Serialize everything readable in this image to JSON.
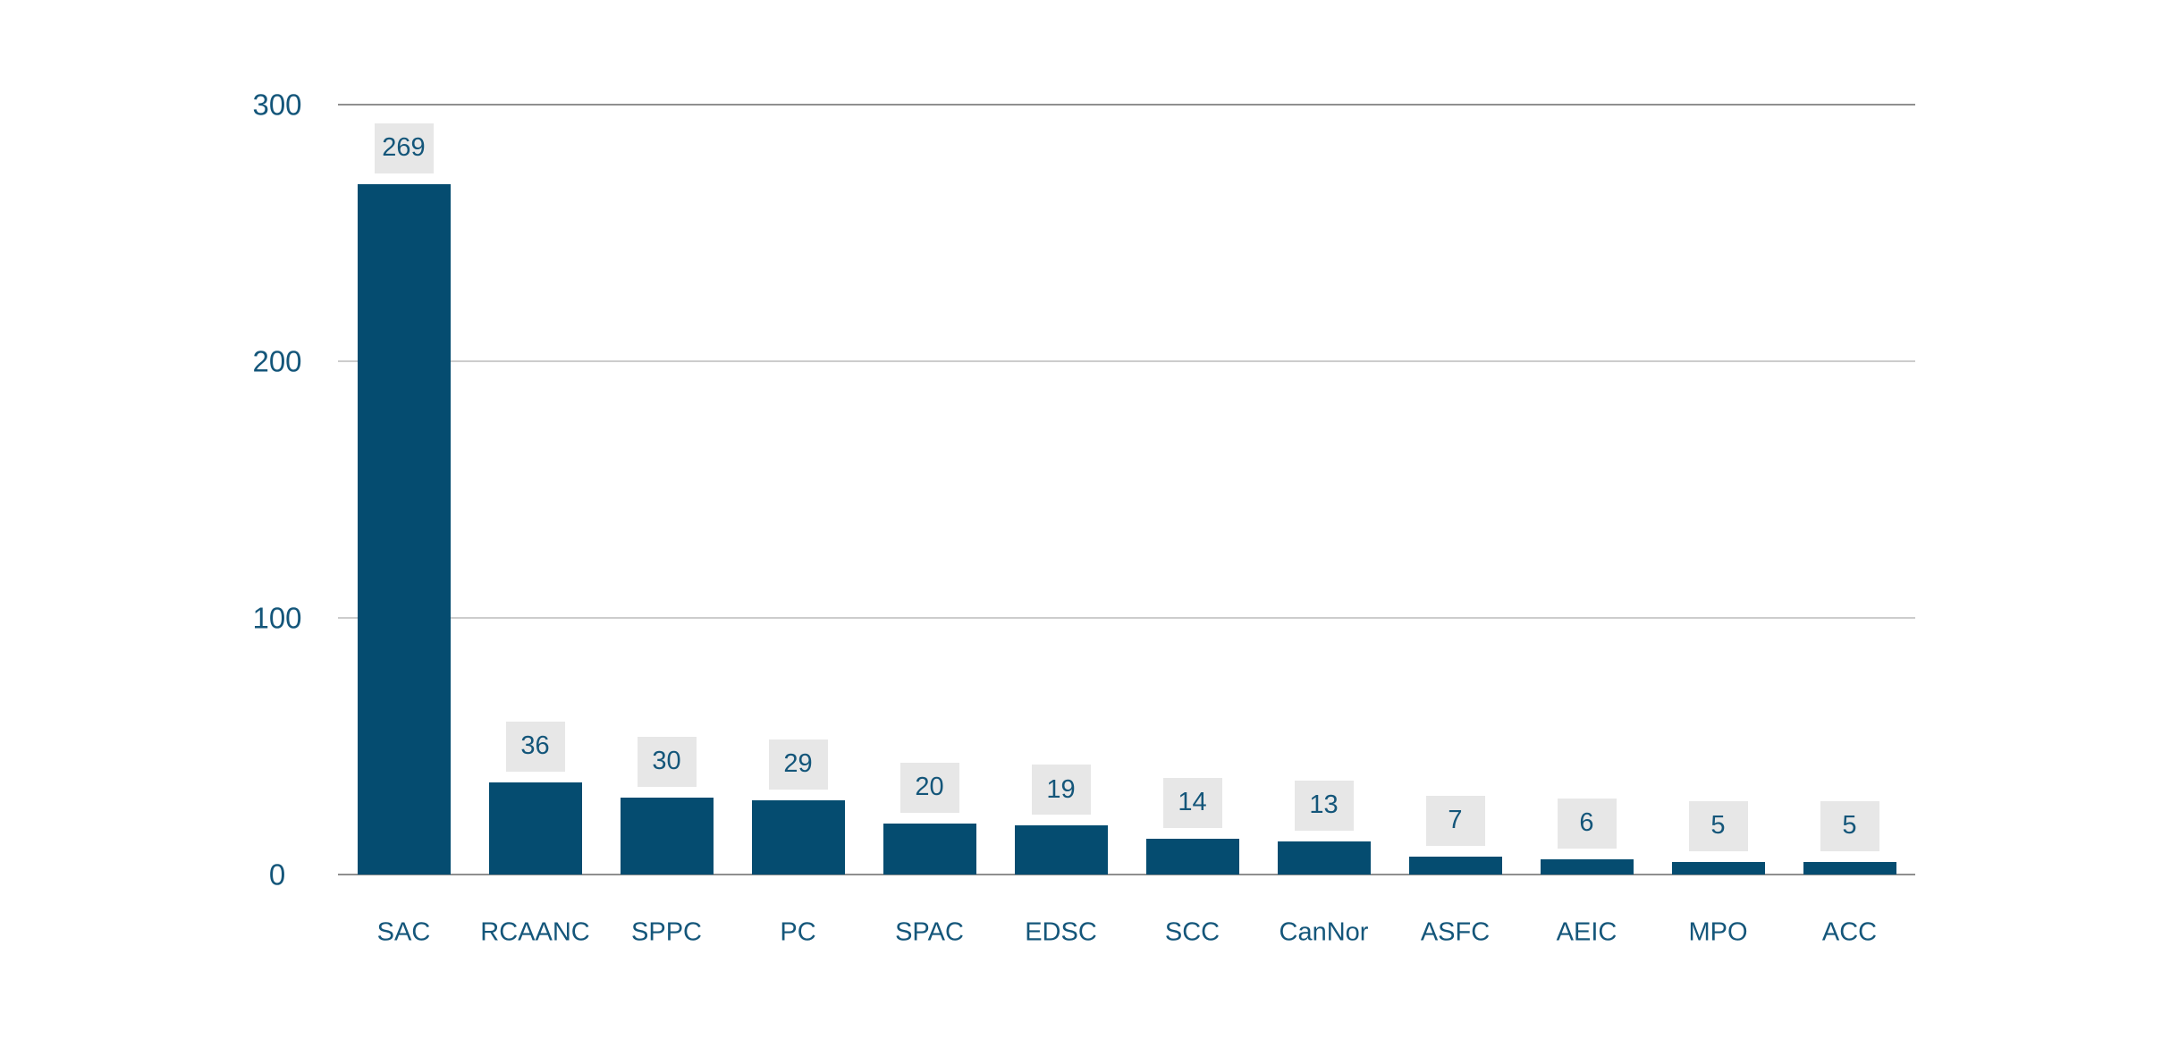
{
  "chart_data": {
    "type": "bar",
    "title": "",
    "xlabel": "",
    "ylabel": "",
    "categories": [
      "SAC",
      "RCAANC",
      "SPPC",
      "PC",
      "SPAC",
      "EDSC",
      "SCC",
      "CanNor",
      "ASFC",
      "AEIC",
      "MPO",
      "ACC"
    ],
    "values": [
      269,
      36,
      30,
      29,
      20,
      19,
      14,
      13,
      7,
      6,
      5,
      5
    ],
    "data_labels": [
      "269",
      "36",
      "30",
      "29",
      "20",
      "19",
      "14",
      "13",
      "7",
      "6",
      "5",
      "5"
    ],
    "ylim": [
      0,
      300
    ],
    "yticks": [
      0,
      100,
      200,
      300
    ],
    "grid": true,
    "legend": false,
    "legend_position": "none",
    "colors": {
      "bar": "#054C70",
      "text": "#14567A",
      "label_box_bg": "#E7E7E7",
      "gridline": "#CCCCCC",
      "axis_line": "#8F8F8F",
      "background": "#FFFFFF"
    }
  }
}
